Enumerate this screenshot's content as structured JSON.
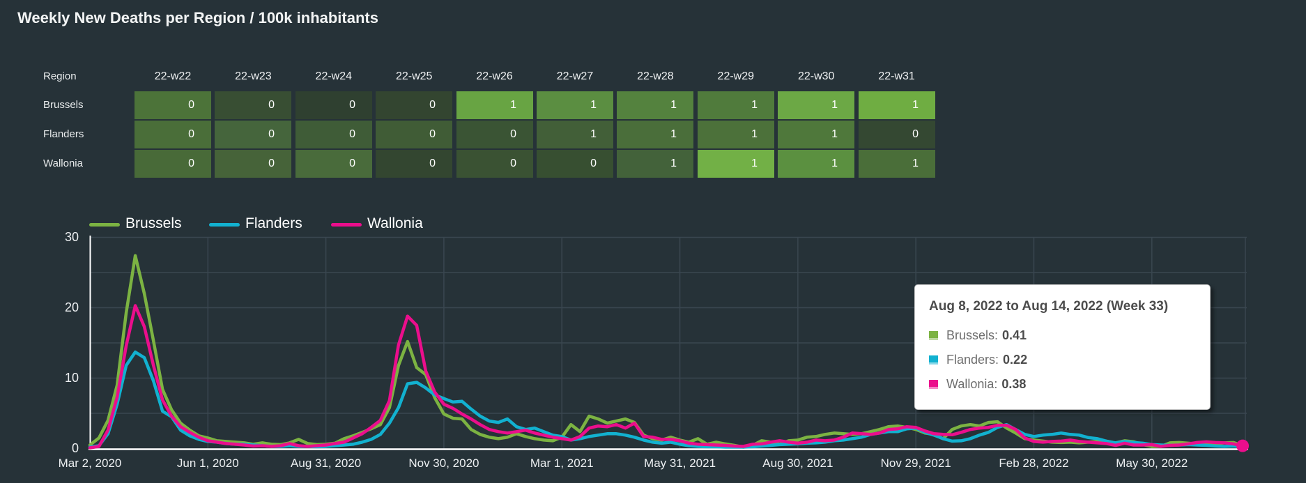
{
  "title": "Weekly New Deaths per Region / 100k inhabitants",
  "colors": {
    "background": "#263238",
    "gridline": "#3a4750",
    "axis": "#ffffff",
    "brussels": "#7cb342",
    "flanders": "#12b1d0",
    "wallonia": "#eb0e8c"
  },
  "heatmap": {
    "corner_label": "Region",
    "columns": [
      "22-w22",
      "22-w23",
      "22-w24",
      "22-w25",
      "22-w26",
      "22-w27",
      "22-w28",
      "22-w29",
      "22-w30",
      "22-w31"
    ],
    "rows": [
      {
        "label": "Brussels",
        "values": [
          "0",
          "0",
          "0",
          "0",
          "1",
          "1",
          "1",
          "1",
          "1",
          "1"
        ],
        "cell_colors": [
          "#4c7339",
          "#384e33",
          "#2f4030",
          "#334530",
          "#68a443",
          "#5b8e41",
          "#54823e",
          "#507b3c",
          "#6ca845",
          "#6fad42"
        ]
      },
      {
        "label": "Flanders",
        "values": [
          "0",
          "0",
          "0",
          "0",
          "0",
          "1",
          "1",
          "1",
          "1",
          "0"
        ],
        "cell_colors": [
          "#4a6e39",
          "#45653c",
          "#3f5c37",
          "#405c36",
          "#3a5434",
          "#425f38",
          "#4a6e3a",
          "#4c713a",
          "#4f783b",
          "#344832"
        ]
      },
      {
        "label": "Wallonia",
        "values": [
          "0",
          "0",
          "0",
          "0",
          "0",
          "0",
          "1",
          "1",
          "1",
          "1"
        ],
        "cell_colors": [
          "#486a38",
          "#466339",
          "#496b3b",
          "#334630",
          "#3a5233",
          "#374f31",
          "#43623a",
          "#72b046",
          "#5b9040",
          "#4a6e39"
        ]
      }
    ]
  },
  "legend": [
    {
      "label": "Brussels",
      "color": "#7cb342"
    },
    {
      "label": "Flanders",
      "color": "#12b1d0"
    },
    {
      "label": "Wallonia",
      "color": "#eb0e8c"
    }
  ],
  "chart_data": {
    "type": "line",
    "title": "Weekly New Deaths per Region / 100k inhabitants",
    "xlabel": "",
    "ylabel": "",
    "ylim": [
      0,
      30
    ],
    "y_ticks": [
      0,
      10,
      20,
      30
    ],
    "grid": true,
    "legend_position": "top-left",
    "x_unit": "week starting date, weekly data Mar 2 2020 - Aug 8 2022",
    "x_tick_labels": [
      "Mar 2, 2020",
      "Jun 1, 2020",
      "Aug 31, 2020",
      "Nov 30, 2020",
      "Mar 1, 2021",
      "May 31, 2021",
      "Aug 30, 2021",
      "Nov 29, 2021",
      "Feb 28, 2022",
      "May 30, 2022"
    ],
    "x_tick_weeks": [
      0,
      13,
      26,
      39,
      52,
      65,
      78,
      91,
      104,
      117
    ],
    "series": [
      {
        "name": "Brussels",
        "color": "#7cb342",
        "values": [
          0.5,
          1.5,
          4,
          9,
          19.3,
          27.4,
          22,
          15.3,
          8.4,
          5.5,
          3.6,
          2.6,
          1.8,
          1.5,
          1.1,
          1,
          0.9,
          0.8,
          0.6,
          0.8,
          0.6,
          0.55,
          0.8,
          1.3,
          0.7,
          0.55,
          0.6,
          0.75,
          1.4,
          1.8,
          2.3,
          2.8,
          3.4,
          5.8,
          11.8,
          15.2,
          11.5,
          10.5,
          7.2,
          4.9,
          4.3,
          4.2,
          2.7,
          2,
          1.6,
          1.4,
          1.6,
          2.1,
          1.7,
          1.4,
          1.2,
          1.1,
          1.6,
          3.4,
          2.4,
          4.6,
          4.2,
          3.6,
          3.9,
          4.2,
          3.7,
          1.9,
          1.4,
          1.2,
          1.6,
          1.2,
          0.9,
          1.4,
          0.6,
          0.9,
          0.65,
          0.45,
          0.2,
          0.45,
          1.1,
          0.9,
          0.6,
          1.1,
          1.2,
          1.6,
          1.7,
          2,
          2.2,
          2.1,
          2,
          2.1,
          2.4,
          2.7,
          3.1,
          3.2,
          3,
          2.7,
          2.2,
          2,
          1.4,
          2.7,
          3.2,
          3.4,
          3.2,
          3.7,
          3.8,
          2.9,
          2.2,
          1.4,
          1.2,
          1.05,
          0.9,
          0.85,
          0.9,
          0.8,
          0.9,
          1,
          1.05,
          0.8,
          1.1,
          0.95,
          0.55,
          0.3,
          0.3,
          0.8,
          0.85,
          0.75,
          0.65,
          0.55,
          0.65,
          0.8,
          0.85,
          0.41
        ]
      },
      {
        "name": "Flanders",
        "color": "#12b1d0",
        "values": [
          0.2,
          0.4,
          2.1,
          6.3,
          11.8,
          13.7,
          12.9,
          9.6,
          5.3,
          4.5,
          2.6,
          1.8,
          1.3,
          1,
          0.9,
          0.7,
          0.6,
          0.6,
          0.5,
          0.4,
          0.3,
          0.3,
          0.4,
          0.3,
          0.3,
          0.25,
          0.3,
          0.4,
          0.5,
          0.6,
          0.9,
          1.3,
          2,
          3.6,
          5.8,
          9.2,
          9.4,
          8.6,
          7.6,
          7.1,
          6.6,
          6.7,
          5.6,
          4.6,
          3.9,
          3.7,
          4.2,
          3.1,
          2.7,
          2.9,
          2.4,
          1.9,
          1.7,
          1.2,
          1.4,
          1.7,
          1.9,
          2.1,
          2.1,
          1.9,
          1.6,
          1.2,
          0.9,
          0.75,
          0.9,
          0.6,
          0.4,
          0.3,
          0.25,
          0.25,
          0.2,
          0.2,
          0.2,
          0.25,
          0.35,
          0.45,
          0.55,
          0.6,
          0.65,
          0.75,
          0.8,
          0.9,
          1.1,
          1.2,
          1.4,
          1.6,
          2,
          2.2,
          2.4,
          2.4,
          2.8,
          2.9,
          2.3,
          1.9,
          1.4,
          1.05,
          1.1,
          1.4,
          1.9,
          2.3,
          3,
          3.4,
          2.7,
          2,
          1.7,
          1.9,
          2,
          2.2,
          2,
          1.9,
          1.55,
          1.4,
          1.05,
          0.8,
          1,
          0.85,
          0.75,
          0.55,
          0.5,
          0.45,
          0.5,
          0.55,
          0.5,
          0.45,
          0.35,
          0.3,
          0.35,
          0.22
        ]
      },
      {
        "name": "Wallonia",
        "color": "#eb0e8c",
        "values": [
          0.1,
          0.3,
          2.6,
          7.3,
          14.6,
          20.3,
          17.3,
          11.8,
          6.9,
          4.6,
          3.1,
          2.3,
          1.6,
          1.1,
          0.9,
          0.7,
          0.6,
          0.5,
          0.35,
          0.4,
          0.3,
          0.4,
          0.7,
          0.4,
          0.3,
          0.4,
          0.5,
          0.7,
          0.9,
          1.5,
          2.1,
          3,
          4,
          6.8,
          14.7,
          18.8,
          17.5,
          11,
          8,
          6.3,
          5.7,
          4.9,
          4.2,
          3.4,
          2.7,
          2.4,
          2.2,
          2.4,
          2.6,
          2.2,
          1.9,
          1.6,
          1.4,
          1.2,
          1.7,
          2.9,
          3.2,
          3.1,
          3.4,
          2.9,
          3.6,
          1.7,
          1.6,
          1.3,
          1.3,
          1.1,
          0.75,
          0.6,
          0.55,
          0.5,
          0.45,
          0.35,
          0.3,
          0.6,
          0.65,
          0.9,
          1.1,
          0.9,
          0.75,
          0.9,
          1.2,
          1.1,
          1.2,
          1.6,
          2.2,
          2.1,
          2,
          2.2,
          2.7,
          2.8,
          3.1,
          3,
          2.5,
          2.1,
          2,
          1.95,
          2.3,
          2.7,
          2.9,
          3,
          3.3,
          3.3,
          2.7,
          1.5,
          1,
          0.9,
          1,
          1.05,
          1.2,
          1,
          0.9,
          0.8,
          0.7,
          0.45,
          0.75,
          0.5,
          0.5,
          0.55,
          0.3,
          0.45,
          0.5,
          0.65,
          0.85,
          0.95,
          0.85,
          0.8,
          0.65,
          0.38
        ]
      }
    ],
    "highlight_point": {
      "series": "Wallonia",
      "week_index": 127,
      "value": 0.38
    }
  },
  "tooltip": {
    "title": "Aug 8, 2022 to Aug 14, 2022 (Week 33)",
    "items": [
      {
        "label": "Brussels:",
        "value": "0.41",
        "color": "#7cb342"
      },
      {
        "label": "Flanders:",
        "value": "0.22",
        "color": "#12b1d0"
      },
      {
        "label": "Wallonia:",
        "value": "0.38",
        "color": "#eb0e8c"
      }
    ]
  }
}
